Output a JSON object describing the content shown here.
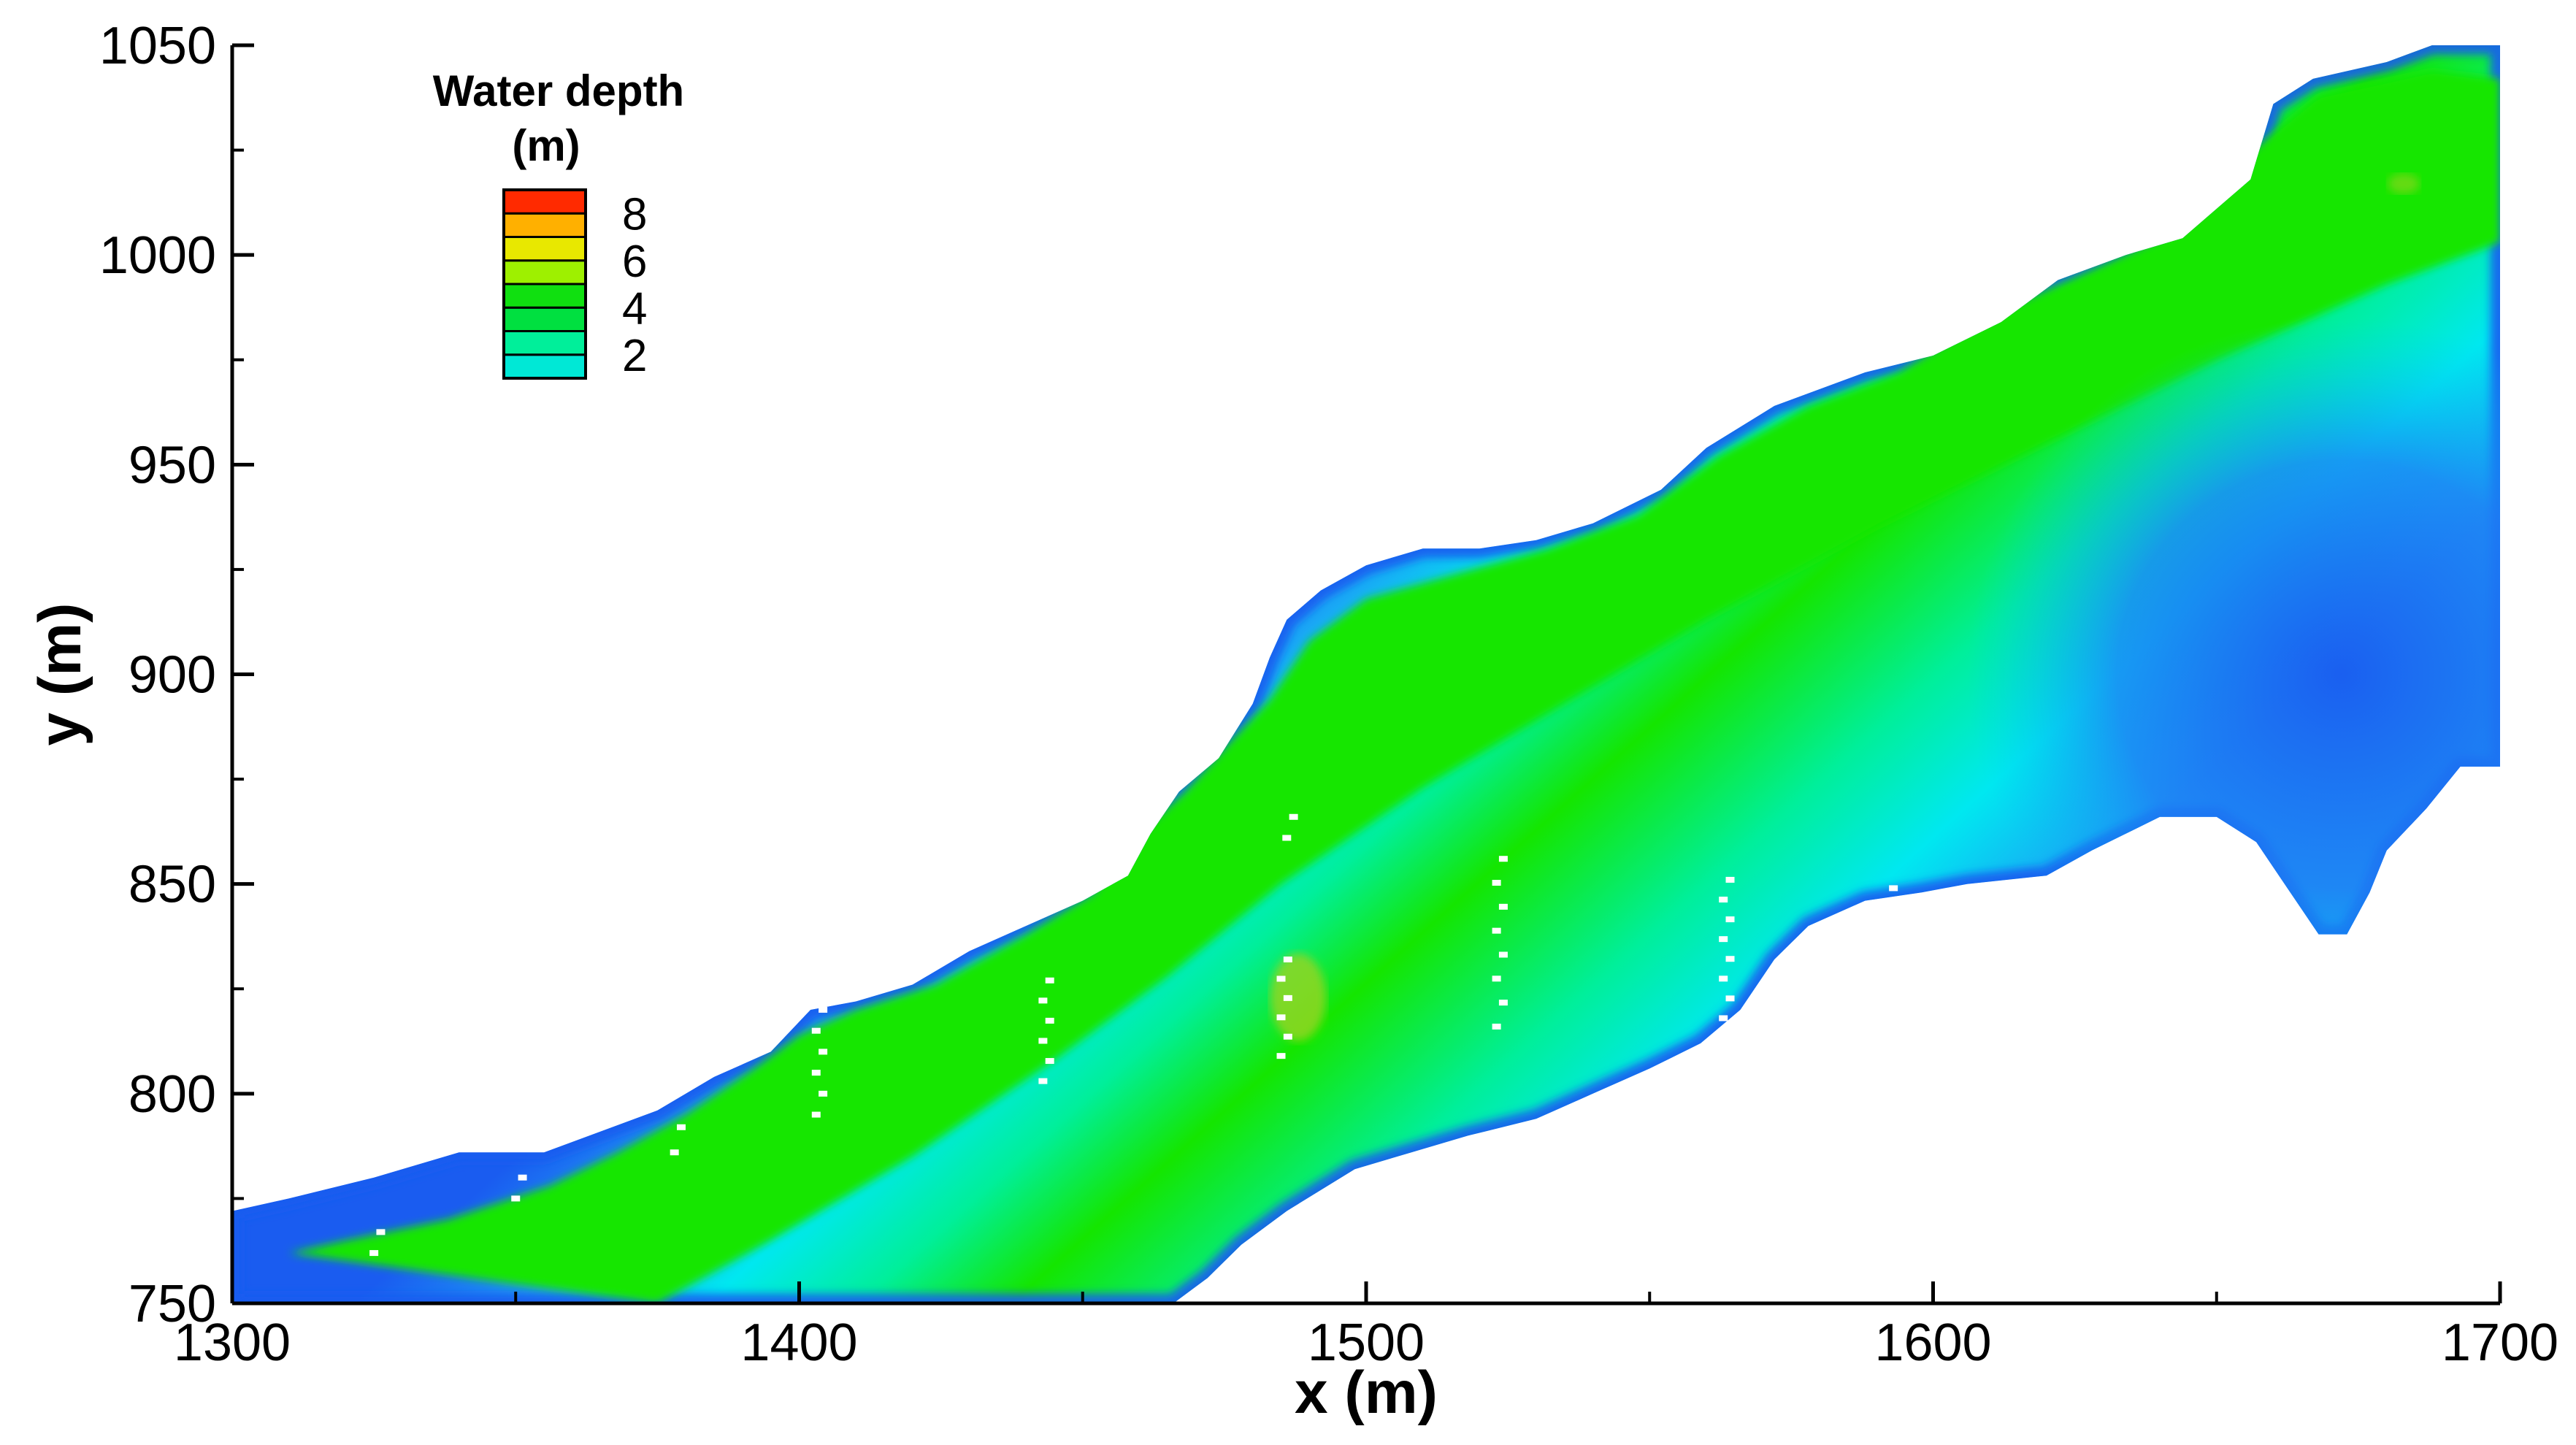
{
  "chart_data": {
    "type": "heatmap",
    "title": "",
    "xlabel": "x (m)",
    "ylabel": "y (m)",
    "xlim": [
      1300,
      1700
    ],
    "ylim": [
      750,
      1050
    ],
    "x_ticks": [
      1300,
      1400,
      1500,
      1600,
      1700
    ],
    "y_ticks": [
      750,
      800,
      850,
      900,
      950,
      1000,
      1050
    ],
    "grid": false,
    "colorscale": {
      "title_line1": "Water depth",
      "title_line2": "(m)",
      "placement": "top-left",
      "range": [
        1,
        9
      ],
      "bands": [
        {
          "from": 1,
          "to": 2,
          "color": "#00e8d6"
        },
        {
          "from": 2,
          "to": 3,
          "color": "#00ef9a"
        },
        {
          "from": 3,
          "to": 4,
          "color": "#00e040"
        },
        {
          "from": 4,
          "to": 5,
          "color": "#10e010"
        },
        {
          "from": 5,
          "to": 6,
          "color": "#9ef000"
        },
        {
          "from": 6,
          "to": 7,
          "color": "#e8e800"
        },
        {
          "from": 7,
          "to": 8,
          "color": "#ffb000"
        },
        {
          "from": 8,
          "to": 9,
          "color": "#ff2a00"
        }
      ],
      "tick_labels": [
        {
          "value": 2,
          "label": "2"
        },
        {
          "value": 4,
          "label": "4"
        },
        {
          "value": 6,
          "label": "6"
        },
        {
          "value": 8,
          "label": "8"
        }
      ]
    },
    "colors": {
      "shallow": "#1a5cf0",
      "mid_shallow": "#1e9cf6",
      "light": "#00e8f0",
      "medium": "#00ef9a",
      "deep": "#14e600",
      "deep_alt": "#2cf000",
      "deepest": "#9ad41e"
    },
    "domain": {
      "north_bank": [
        [
          1300,
          772
        ],
        [
          1310,
          775
        ],
        [
          1325,
          780
        ],
        [
          1340,
          786
        ],
        [
          1355,
          786
        ],
        [
          1375,
          796
        ],
        [
          1385,
          804
        ],
        [
          1395,
          810
        ],
        [
          1402,
          820
        ],
        [
          1410,
          822
        ],
        [
          1420,
          826
        ],
        [
          1430,
          834
        ],
        [
          1440,
          840
        ],
        [
          1450,
          846
        ],
        [
          1458,
          852
        ],
        [
          1462,
          862
        ],
        [
          1467,
          872
        ],
        [
          1474,
          880
        ],
        [
          1480,
          893
        ],
        [
          1483,
          904
        ],
        [
          1486,
          913
        ],
        [
          1492,
          920
        ],
        [
          1500,
          926
        ],
        [
          1510,
          930
        ],
        [
          1520,
          930
        ],
        [
          1530,
          932
        ],
        [
          1540,
          936
        ],
        [
          1552,
          944
        ],
        [
          1560,
          954
        ],
        [
          1572,
          964
        ],
        [
          1588,
          972
        ],
        [
          1600,
          976
        ],
        [
          1612,
          984
        ],
        [
          1622,
          994
        ],
        [
          1634,
          1000
        ],
        [
          1644,
          1004
        ],
        [
          1656,
          1018
        ],
        [
          1660,
          1036
        ],
        [
          1667,
          1042
        ],
        [
          1680,
          1046
        ],
        [
          1688,
          1050
        ],
        [
          1700,
          1050
        ]
      ],
      "south_bank": [
        [
          1700,
          878
        ],
        [
          1693,
          878
        ],
        [
          1687,
          868
        ],
        [
          1680,
          858
        ],
        [
          1677,
          848
        ],
        [
          1673,
          838
        ],
        [
          1668,
          838
        ],
        [
          1662,
          850
        ],
        [
          1657,
          860
        ],
        [
          1650,
          866
        ],
        [
          1640,
          866
        ],
        [
          1628,
          858
        ],
        [
          1620,
          852
        ],
        [
          1606,
          850
        ],
        [
          1598,
          848
        ],
        [
          1588,
          846
        ],
        [
          1578,
          840
        ],
        [
          1572,
          832
        ],
        [
          1566,
          820
        ],
        [
          1559,
          812
        ],
        [
          1550,
          806
        ],
        [
          1540,
          800
        ],
        [
          1530,
          794
        ],
        [
          1518,
          790
        ],
        [
          1508,
          786
        ],
        [
          1498,
          782
        ],
        [
          1486,
          772
        ],
        [
          1478,
          764
        ],
        [
          1472,
          756
        ],
        [
          1466,
          750
        ],
        [
          1300,
          750
        ]
      ],
      "deep_core": [
        [
          1375,
          750
        ],
        [
          1395,
          765
        ],
        [
          1420,
          785
        ],
        [
          1445,
          808
        ],
        [
          1465,
          828
        ],
        [
          1485,
          850
        ],
        [
          1510,
          873
        ],
        [
          1535,
          893
        ],
        [
          1560,
          913
        ],
        [
          1590,
          935
        ],
        [
          1620,
          955
        ],
        [
          1650,
          975
        ],
        [
          1680,
          993
        ],
        [
          1700,
          1003
        ],
        [
          1700,
          1042
        ],
        [
          1688,
          1044
        ],
        [
          1668,
          1038
        ],
        [
          1650,
          1018
        ],
        [
          1640,
          1004
        ],
        [
          1624,
          994
        ],
        [
          1610,
          986
        ],
        [
          1594,
          972
        ],
        [
          1578,
          964
        ],
        [
          1562,
          952
        ],
        [
          1548,
          938
        ],
        [
          1532,
          930
        ],
        [
          1516,
          924
        ],
        [
          1500,
          918
        ],
        [
          1490,
          908
        ],
        [
          1483,
          894
        ],
        [
          1476,
          884
        ],
        [
          1468,
          872
        ],
        [
          1458,
          860
        ],
        [
          1452,
          848
        ],
        [
          1440,
          838
        ],
        [
          1424,
          826
        ],
        [
          1410,
          820
        ],
        [
          1400,
          814
        ],
        [
          1392,
          806
        ],
        [
          1380,
          795
        ],
        [
          1368,
          786
        ],
        [
          1356,
          778
        ],
        [
          1338,
          770
        ],
        [
          1320,
          765
        ],
        [
          1310,
          762
        ]
      ]
    }
  }
}
